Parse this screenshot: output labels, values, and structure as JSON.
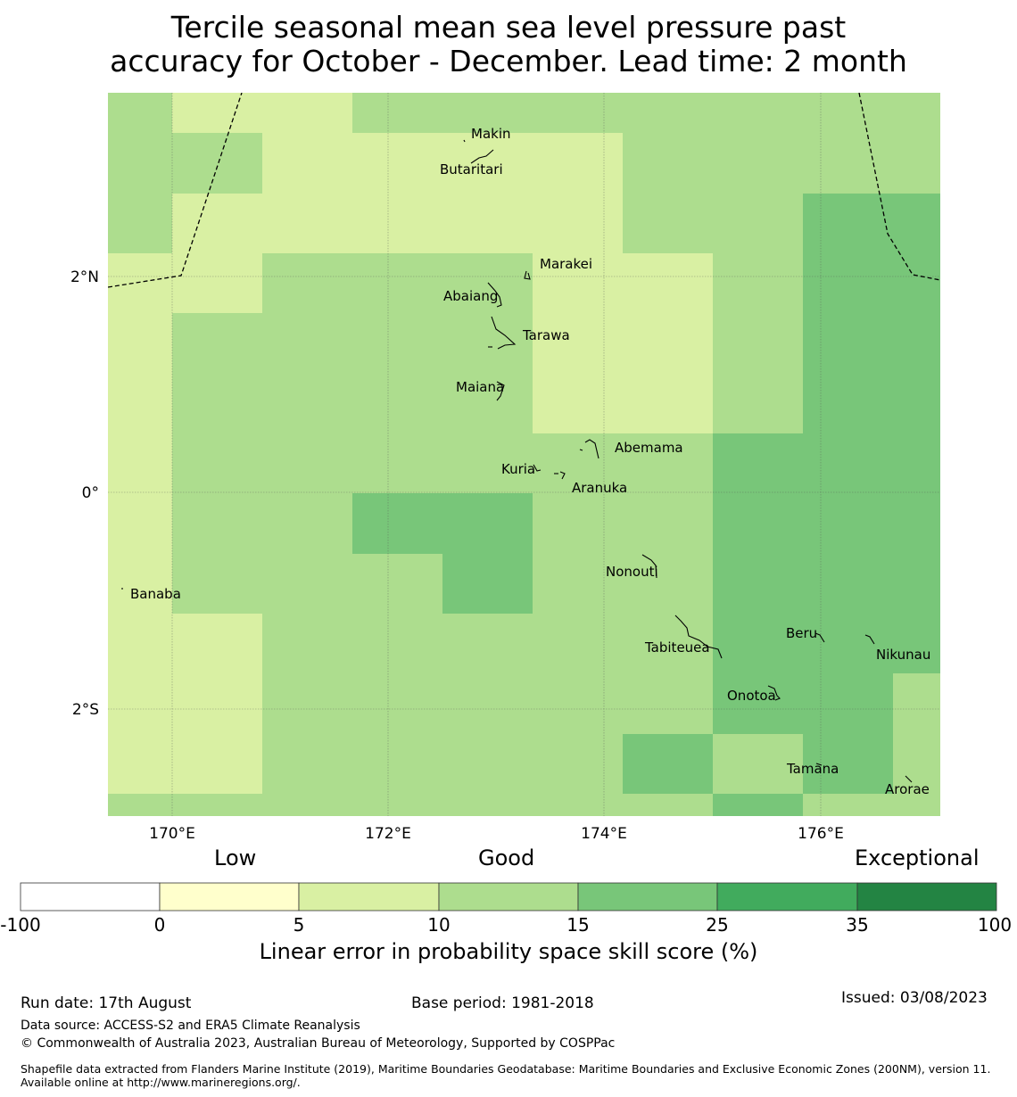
{
  "title_line1": "Tercile seasonal mean sea level pressure past",
  "title_line2": "accuracy for October - December. Lead time: 2 month",
  "map": {
    "lon_ticks": [
      "170°E",
      "172°E",
      "174°E",
      "176°E"
    ],
    "lat_ticks": [
      "2°N",
      "0°",
      "2°S"
    ],
    "places": [
      "Makin",
      "Butaritari",
      "Marakei",
      "Abaiang",
      "Tarawa",
      "Maiana",
      "Abemama",
      "Kuria",
      "Aranuka",
      "Nonouti",
      "Banaba",
      "Tabiteuea",
      "Beru",
      "Nikunau",
      "Onotoa",
      "Tamana",
      "Arorae"
    ]
  },
  "colorbar": {
    "categories": [
      "Low",
      "Good",
      "Exceptional"
    ],
    "ticks": [
      "-100",
      "0",
      "5",
      "10",
      "15",
      "25",
      "35",
      "100"
    ],
    "colors": [
      "#ffffff",
      "#ffffcc",
      "#d9f0a3",
      "#addd8e",
      "#78c679",
      "#41ab5d",
      "#238443"
    ],
    "label": "Linear error in probability space skill score (%)"
  },
  "footer": {
    "run_date": "Run date: 17th August",
    "base_period": "Base period: 1981-2018",
    "issued": "Issued: 03/08/2023",
    "data_source": "Data source: ACCESS-S2 and ERA5 Climate Reanalysis",
    "copyright": "© Commonwealth of Australia 2023, Australian Bureau of Meteorology, Supported by COSPPac",
    "shapefile": "Shapefile data extracted from Flanders Marine Institute (2019), Maritime Boundaries Geodatabase: Maritime Boundaries and Exclusive Economic Zones (200NM), version 11. Available online at http://www.marineregions.org/."
  }
}
